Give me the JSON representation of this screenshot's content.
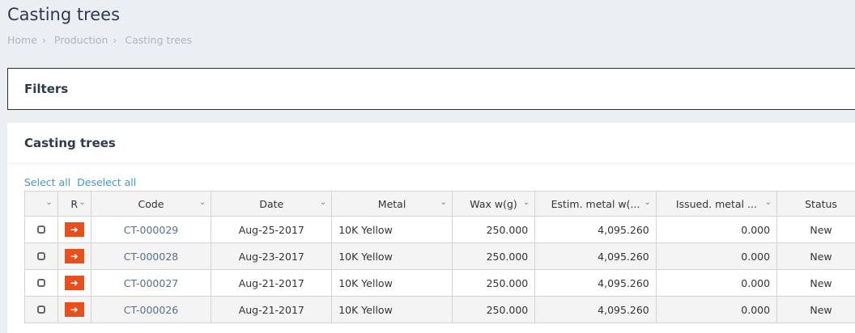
{
  "page": {
    "title": "Casting trees",
    "breadcrumb": [
      "Home",
      "Production",
      "Casting trees"
    ],
    "separator": "›"
  },
  "filters": {
    "title": "Filters"
  },
  "card": {
    "title": "Casting trees",
    "select_all": "Select all",
    "deselect_all": "Deselect all"
  },
  "table": {
    "columns": [
      "",
      "R",
      "Code",
      "Date",
      "Metal",
      "Wax w(g)",
      "Estim. metal w(...",
      "Issued. metal ...",
      "Status"
    ],
    "rows": [
      {
        "code": "CT-000029",
        "date": "Aug-25-2017",
        "metal": "10K Yellow",
        "wax": "250.000",
        "estim": "4,095.260",
        "issued": "0.000",
        "status": "New"
      },
      {
        "code": "CT-000028",
        "date": "Aug-23-2017",
        "metal": "10K Yellow",
        "wax": "250.000",
        "estim": "4,095.260",
        "issued": "0.000",
        "status": "New"
      },
      {
        "code": "CT-000027",
        "date": "Aug-21-2017",
        "metal": "10K Yellow",
        "wax": "250.000",
        "estim": "4,095.260",
        "issued": "0.000",
        "status": "New"
      },
      {
        "code": "CT-000026",
        "date": "Aug-21-2017",
        "metal": "10K Yellow",
        "wax": "250.000",
        "estim": "4,095.260",
        "issued": "0.000",
        "status": "New"
      }
    ]
  },
  "colors": {
    "accent": "#e94e1b",
    "link": "#3c9ad8"
  }
}
